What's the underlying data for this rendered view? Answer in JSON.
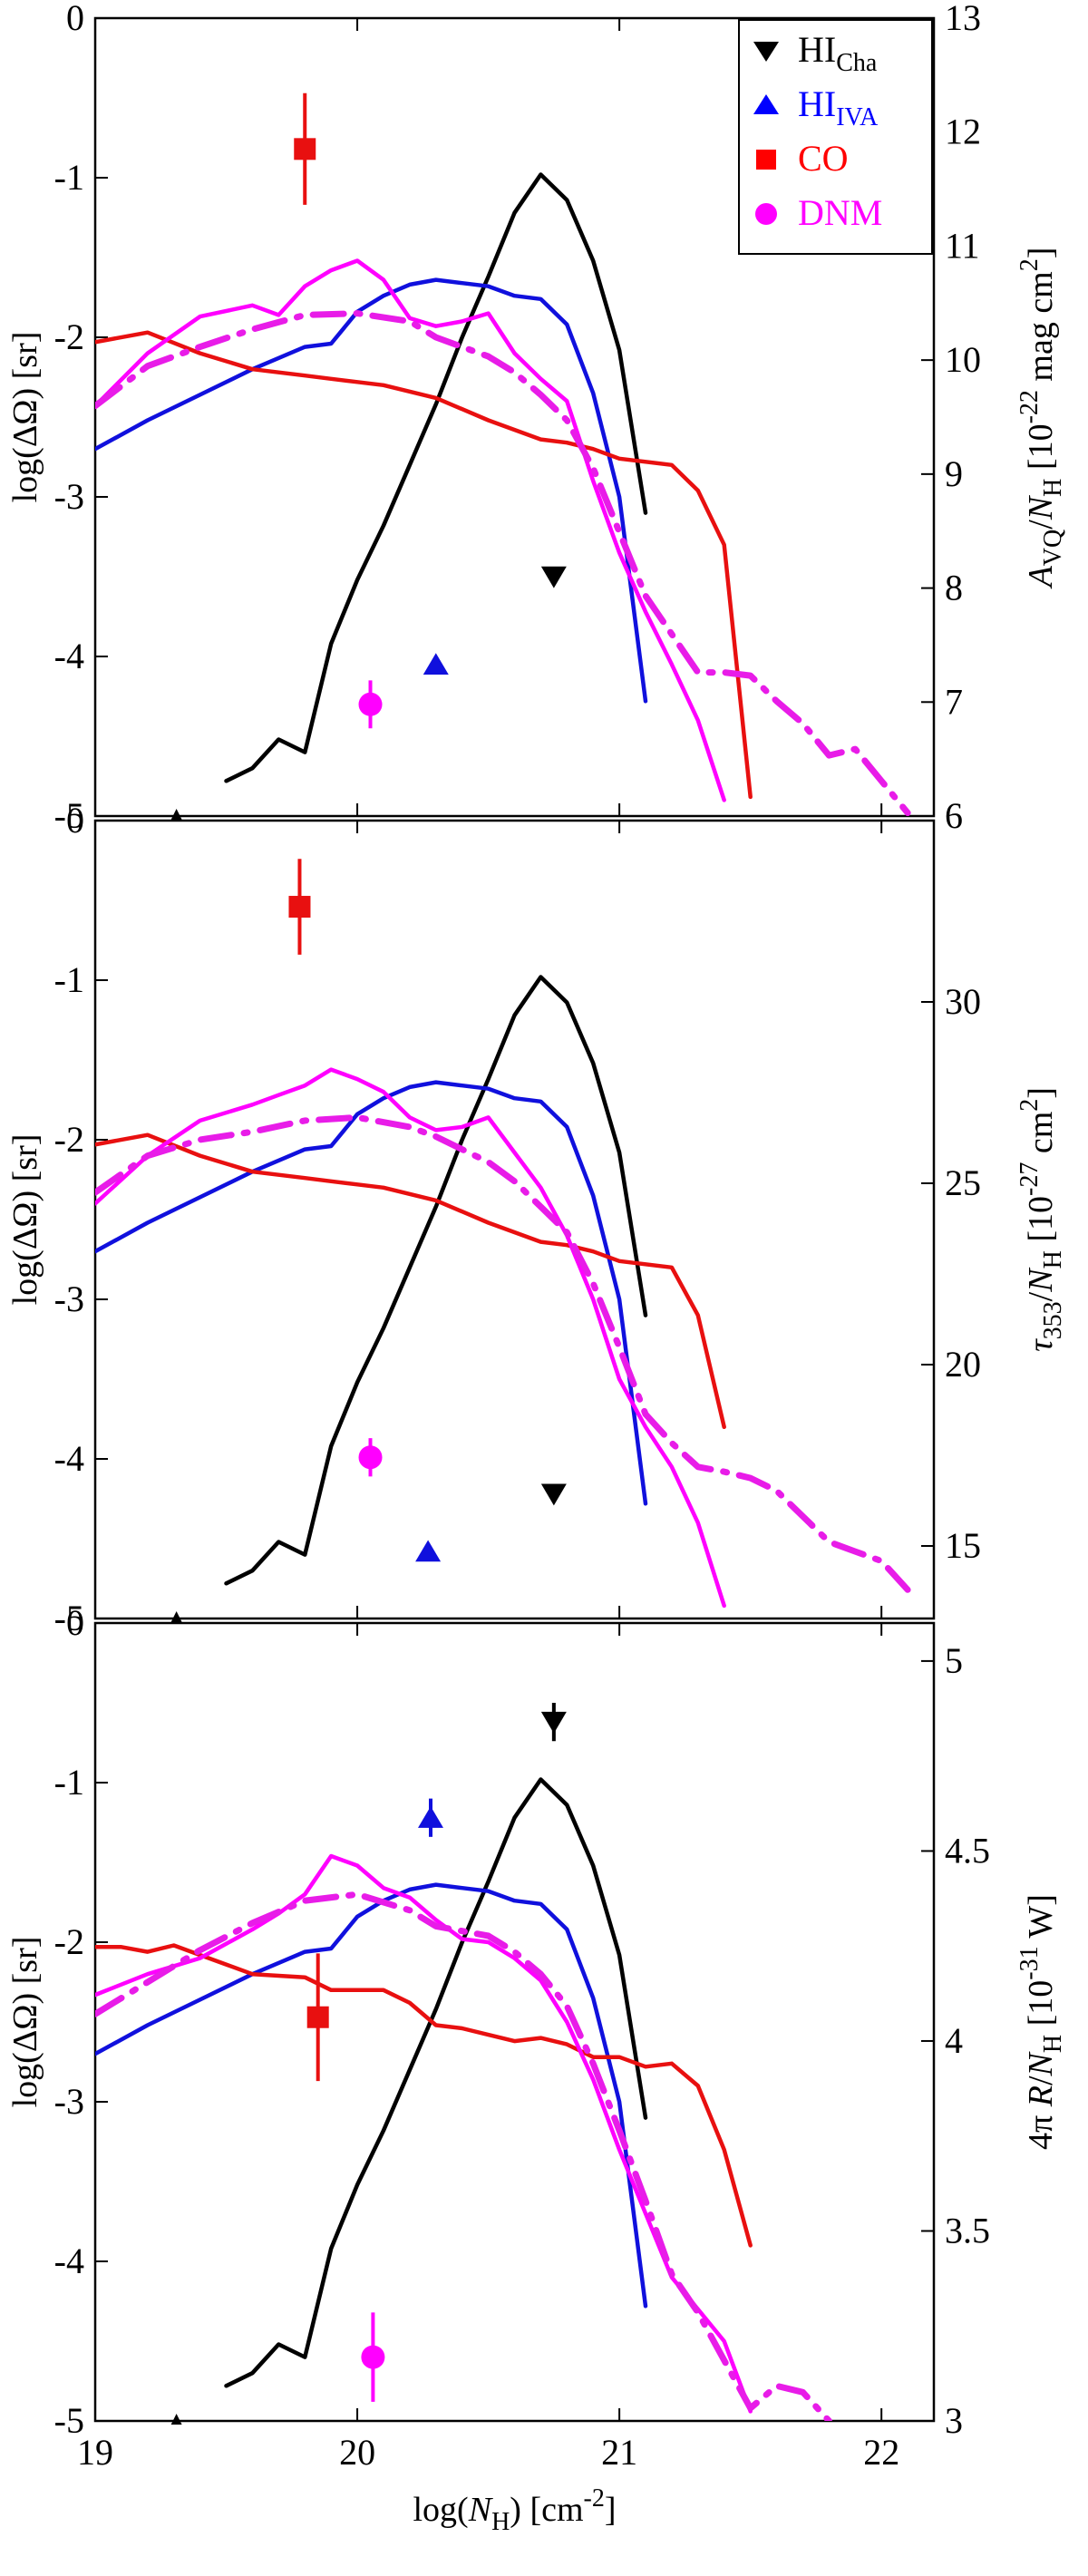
{
  "figure": {
    "xlabel": "log(N_H) [cm^-2]",
    "x_ticks": [
      "19",
      "20",
      "21",
      "22"
    ],
    "left_ticks": [
      "0",
      "-1",
      "-2",
      "-3",
      "-4",
      "-5"
    ],
    "legend": {
      "hi_cha": {
        "main": "HI",
        "sub": "Cha",
        "color": "#000000",
        "marker": "down-triangle"
      },
      "hi_iva": {
        "main": "HI",
        "sub": "IVA",
        "color": "#0000ff",
        "marker": "up-triangle"
      },
      "co": {
        "main": "CO",
        "color": "#ff0000",
        "marker": "square"
      },
      "dnm": {
        "main": "DNM",
        "color": "#ff00ff",
        "marker": "circle"
      }
    },
    "colors": {
      "hi_cha": "#000000",
      "hi_iva": "#1010dd",
      "co": "#e81010",
      "dnm": "#ff00ff",
      "dnm_dash": "#e81ce8"
    }
  },
  "chart_data": [
    {
      "type": "line",
      "panel": "top",
      "xlabel": "log(N_H) [cm^-2]",
      "ylabel": "log(ΔΩ) [sr]",
      "xlim": [
        19,
        22.2
      ],
      "ylim": [
        -5,
        0
      ],
      "y2label": "A_VQ/N_H [10^-22 mag cm^2]",
      "y2lim": [
        6,
        13
      ],
      "y2_ticks": [
        "6",
        "7",
        "8",
        "9",
        "10",
        "11",
        "12",
        "13"
      ],
      "series": [
        {
          "name": "HI_Cha",
          "x": [
            19.5,
            19.6,
            19.7,
            19.8,
            19.9,
            20.0,
            20.1,
            20.2,
            20.3,
            20.4,
            20.5,
            20.6,
            20.7,
            20.8,
            20.9,
            21.0,
            21.1
          ],
          "y": [
            -4.78,
            -4.7,
            -4.52,
            -4.6,
            -3.92,
            -3.52,
            -3.18,
            -2.8,
            -2.42,
            -2.0,
            -1.62,
            -1.22,
            -0.98,
            -1.14,
            -1.52,
            -2.08,
            -3.1
          ]
        },
        {
          "name": "HI_IVA",
          "x": [
            19.0,
            19.2,
            19.4,
            19.6,
            19.8,
            19.9,
            20.0,
            20.1,
            20.2,
            20.3,
            20.4,
            20.5,
            20.6,
            20.7,
            20.8,
            20.9,
            21.0,
            21.1
          ],
          "y": [
            -2.7,
            -2.52,
            -2.36,
            -2.2,
            -2.06,
            -2.04,
            -1.84,
            -1.74,
            -1.67,
            -1.64,
            -1.66,
            -1.68,
            -1.74,
            -1.76,
            -1.92,
            -2.35,
            -3.0,
            -4.28
          ]
        },
        {
          "name": "CO",
          "x": [
            19.0,
            19.2,
            19.4,
            19.6,
            19.8,
            19.9,
            20.0,
            20.1,
            20.3,
            20.5,
            20.7,
            20.8,
            20.9,
            21.0,
            21.2,
            21.3,
            21.4,
            21.5
          ],
          "y": [
            -2.03,
            -1.97,
            -2.1,
            -2.2,
            -2.24,
            -2.26,
            -2.28,
            -2.3,
            -2.38,
            -2.52,
            -2.64,
            -2.66,
            -2.7,
            -2.76,
            -2.8,
            -2.96,
            -3.3,
            -4.88
          ]
        },
        {
          "name": "DNM",
          "x": [
            19.0,
            19.2,
            19.4,
            19.6,
            19.7,
            19.8,
            19.9,
            20.0,
            20.1,
            20.2,
            20.3,
            20.4,
            20.5,
            20.6,
            20.7,
            20.8,
            20.9,
            21.0,
            21.1,
            21.2,
            21.3,
            21.4
          ],
          "y": [
            -2.43,
            -2.1,
            -1.87,
            -1.8,
            -1.86,
            -1.68,
            -1.58,
            -1.52,
            -1.64,
            -1.88,
            -1.93,
            -1.9,
            -1.85,
            -2.1,
            -2.26,
            -2.4,
            -2.9,
            -3.35,
            -3.72,
            -4.05,
            -4.4,
            -4.9
          ]
        },
        {
          "name": "DNM (dash-dot)",
          "x": [
            19.0,
            19.2,
            19.4,
            19.6,
            19.8,
            20.0,
            20.2,
            20.3,
            20.4,
            20.5,
            20.6,
            20.7,
            20.8,
            20.9,
            21.0,
            21.1,
            21.2,
            21.3,
            21.4,
            21.5,
            21.6,
            21.7,
            21.8,
            21.9,
            22.0,
            22.1
          ],
          "y": [
            -2.43,
            -2.18,
            -2.06,
            -1.95,
            -1.86,
            -1.85,
            -1.9,
            -2.0,
            -2.06,
            -2.12,
            -2.22,
            -2.36,
            -2.52,
            -2.82,
            -3.22,
            -3.62,
            -3.86,
            -4.1,
            -4.1,
            -4.12,
            -4.28,
            -4.42,
            -4.62,
            -4.58,
            -4.78,
            -4.98
          ]
        }
      ],
      "points": [
        {
          "name": "HI_Cha",
          "x": 20.75,
          "y": -3.5,
          "err": 0.05,
          "marker": "down-triangle"
        },
        {
          "name": "HI_IVA",
          "x": 20.3,
          "y": -4.05,
          "err": 0.05,
          "marker": "up-triangle"
        },
        {
          "name": "CO",
          "x": 19.8,
          "y": -0.82,
          "err": 0.35,
          "marker": "square"
        },
        {
          "name": "DNM",
          "x": 20.05,
          "y": -4.3,
          "err": 0.15,
          "marker": "circle"
        }
      ]
    },
    {
      "type": "line",
      "panel": "middle",
      "xlabel": "log(N_H) [cm^-2]",
      "ylabel": "log(ΔΩ) [sr]",
      "xlim": [
        19,
        22.2
      ],
      "ylim": [
        -5,
        0
      ],
      "y2label": "τ_353/N_H [10^-27 cm^2]",
      "y2lim": [
        13,
        35
      ],
      "y2_ticks": [
        "15",
        "20",
        "25",
        "30"
      ],
      "series": [
        {
          "name": "HI_Cha",
          "x": [
            19.5,
            19.6,
            19.7,
            19.8,
            19.9,
            20.0,
            20.1,
            20.2,
            20.3,
            20.4,
            20.5,
            20.6,
            20.7,
            20.8,
            20.9,
            21.0,
            21.1
          ],
          "y": [
            -4.78,
            -4.7,
            -4.52,
            -4.6,
            -3.92,
            -3.52,
            -3.18,
            -2.8,
            -2.42,
            -2.0,
            -1.62,
            -1.22,
            -0.98,
            -1.14,
            -1.52,
            -2.08,
            -3.1
          ]
        },
        {
          "name": "HI_IVA",
          "x": [
            19.0,
            19.2,
            19.4,
            19.6,
            19.8,
            19.9,
            20.0,
            20.1,
            20.2,
            20.3,
            20.4,
            20.5,
            20.6,
            20.7,
            20.8,
            20.9,
            21.0,
            21.1
          ],
          "y": [
            -2.7,
            -2.52,
            -2.36,
            -2.2,
            -2.06,
            -2.04,
            -1.84,
            -1.74,
            -1.67,
            -1.64,
            -1.66,
            -1.68,
            -1.74,
            -1.76,
            -1.92,
            -2.35,
            -3.0,
            -4.28
          ]
        },
        {
          "name": "CO",
          "x": [
            19.0,
            19.2,
            19.4,
            19.6,
            19.8,
            19.9,
            20.0,
            20.1,
            20.3,
            20.5,
            20.7,
            20.8,
            20.9,
            21.0,
            21.2,
            21.3,
            21.4
          ],
          "y": [
            -2.03,
            -1.97,
            -2.1,
            -2.2,
            -2.24,
            -2.26,
            -2.28,
            -2.3,
            -2.38,
            -2.52,
            -2.64,
            -2.66,
            -2.7,
            -2.76,
            -2.8,
            -3.1,
            -3.8
          ]
        },
        {
          "name": "DNM",
          "x": [
            19.0,
            19.2,
            19.4,
            19.6,
            19.7,
            19.8,
            19.9,
            20.0,
            20.1,
            20.2,
            20.3,
            20.4,
            20.5,
            20.6,
            20.7,
            20.8,
            20.9,
            21.0,
            21.1,
            21.2,
            21.3,
            21.4
          ],
          "y": [
            -2.4,
            -2.1,
            -1.88,
            -1.78,
            -1.72,
            -1.66,
            -1.56,
            -1.62,
            -1.7,
            -1.86,
            -1.94,
            -1.92,
            -1.86,
            -2.08,
            -2.3,
            -2.6,
            -3.0,
            -3.5,
            -3.8,
            -4.05,
            -4.4,
            -4.92
          ]
        },
        {
          "name": "DNM (dash-dot)",
          "x": [
            19.0,
            19.2,
            19.4,
            19.6,
            19.8,
            20.0,
            20.2,
            20.3,
            20.4,
            20.5,
            20.6,
            20.7,
            20.8,
            20.9,
            21.0,
            21.1,
            21.2,
            21.3,
            21.4,
            21.5,
            21.6,
            21.7,
            21.8,
            21.9,
            22.0,
            22.1
          ],
          "y": [
            -2.33,
            -2.1,
            -2.0,
            -1.95,
            -1.88,
            -1.86,
            -1.92,
            -1.98,
            -2.06,
            -2.14,
            -2.26,
            -2.42,
            -2.58,
            -2.9,
            -3.3,
            -3.72,
            -3.9,
            -4.05,
            -4.08,
            -4.12,
            -4.2,
            -4.36,
            -4.52,
            -4.58,
            -4.64,
            -4.82
          ]
        }
      ],
      "points": [
        {
          "name": "HI_Cha",
          "x": 20.75,
          "y": -4.22,
          "err": 0.05,
          "marker": "down-triangle"
        },
        {
          "name": "HI_IVA",
          "x": 20.27,
          "y": -4.58,
          "err": 0.04,
          "marker": "up-triangle"
        },
        {
          "name": "CO",
          "x": 19.78,
          "y": -0.54,
          "err": 0.3,
          "marker": "square"
        },
        {
          "name": "DNM",
          "x": 20.05,
          "y": -3.99,
          "err": 0.12,
          "marker": "circle"
        }
      ]
    },
    {
      "type": "line",
      "panel": "bottom",
      "xlabel": "log(N_H) [cm^-2]",
      "ylabel": "log(ΔΩ) [sr]",
      "xlim": [
        19,
        22.2
      ],
      "ylim": [
        -5,
        0
      ],
      "y2label": "4π R/N_H [10^-31 W]",
      "y2lim": [
        3,
        5.1
      ],
      "y2_ticks": [
        "3",
        "3.5",
        "4",
        "4.5",
        "5"
      ],
      "series": [
        {
          "name": "HI_Cha",
          "x": [
            19.5,
            19.6,
            19.7,
            19.8,
            19.9,
            20.0,
            20.1,
            20.2,
            20.3,
            20.4,
            20.5,
            20.6,
            20.7,
            20.8,
            20.9,
            21.0,
            21.1
          ],
          "y": [
            -4.78,
            -4.7,
            -4.52,
            -4.6,
            -3.92,
            -3.52,
            -3.18,
            -2.8,
            -2.42,
            -2.0,
            -1.62,
            -1.22,
            -0.98,
            -1.14,
            -1.52,
            -2.08,
            -3.1
          ]
        },
        {
          "name": "HI_IVA",
          "x": [
            19.0,
            19.2,
            19.4,
            19.6,
            19.8,
            19.9,
            20.0,
            20.1,
            20.2,
            20.3,
            20.4,
            20.5,
            20.6,
            20.7,
            20.8,
            20.9,
            21.0,
            21.1
          ],
          "y": [
            -2.7,
            -2.52,
            -2.36,
            -2.2,
            -2.06,
            -2.04,
            -1.84,
            -1.74,
            -1.67,
            -1.64,
            -1.66,
            -1.68,
            -1.74,
            -1.76,
            -1.92,
            -2.35,
            -3.0,
            -4.28
          ]
        },
        {
          "name": "CO",
          "x": [
            19.0,
            19.1,
            19.2,
            19.3,
            19.4,
            19.5,
            19.6,
            19.8,
            19.9,
            20.0,
            20.1,
            20.2,
            20.3,
            20.4,
            20.5,
            20.6,
            20.7,
            20.8,
            20.9,
            21.0,
            21.1,
            21.2,
            21.3,
            21.4,
            21.5
          ],
          "y": [
            -2.03,
            -2.03,
            -2.06,
            -2.02,
            -2.08,
            -2.14,
            -2.2,
            -2.22,
            -2.3,
            -2.3,
            -2.3,
            -2.38,
            -2.52,
            -2.54,
            -2.58,
            -2.62,
            -2.6,
            -2.64,
            -2.72,
            -2.72,
            -2.78,
            -2.76,
            -2.9,
            -3.3,
            -3.9
          ]
        },
        {
          "name": "DNM",
          "x": [
            19.0,
            19.2,
            19.4,
            19.6,
            19.7,
            19.8,
            19.9,
            20.0,
            20.1,
            20.2,
            20.3,
            20.4,
            20.5,
            20.6,
            20.7,
            20.8,
            20.9,
            21.0,
            21.1,
            21.2,
            21.3,
            21.4,
            21.5
          ],
          "y": [
            -2.33,
            -2.2,
            -2.1,
            -1.92,
            -1.82,
            -1.7,
            -1.46,
            -1.52,
            -1.66,
            -1.72,
            -1.86,
            -1.98,
            -2.0,
            -2.1,
            -2.24,
            -2.5,
            -2.86,
            -3.3,
            -3.7,
            -4.1,
            -4.3,
            -4.5,
            -4.94
          ]
        },
        {
          "name": "DNM (dash-dot)",
          "x": [
            19.0,
            19.2,
            19.4,
            19.6,
            19.8,
            20.0,
            20.2,
            20.3,
            20.4,
            20.5,
            20.6,
            20.7,
            20.8,
            20.9,
            21.0,
            21.1,
            21.2,
            21.3,
            21.4,
            21.5,
            21.6,
            21.7,
            21.8
          ],
          "y": [
            -2.45,
            -2.25,
            -2.05,
            -1.88,
            -1.74,
            -1.7,
            -1.8,
            -1.9,
            -1.93,
            -1.96,
            -2.06,
            -2.2,
            -2.4,
            -2.76,
            -3.18,
            -3.62,
            -4.08,
            -4.32,
            -4.62,
            -4.92,
            -4.78,
            -4.82,
            -5.0
          ]
        }
      ],
      "points": [
        {
          "name": "HI_Cha",
          "x": 20.75,
          "y": -0.62,
          "err": 0.12,
          "marker": "down-triangle"
        },
        {
          "name": "HI_IVA",
          "x": 20.28,
          "y": -1.22,
          "err": 0.12,
          "marker": "up-triangle"
        },
        {
          "name": "CO",
          "x": 19.85,
          "y": -2.47,
          "err": 0.4,
          "marker": "square"
        },
        {
          "name": "DNM",
          "x": 20.06,
          "y": -4.6,
          "err": 0.28,
          "marker": "circle"
        }
      ]
    }
  ]
}
